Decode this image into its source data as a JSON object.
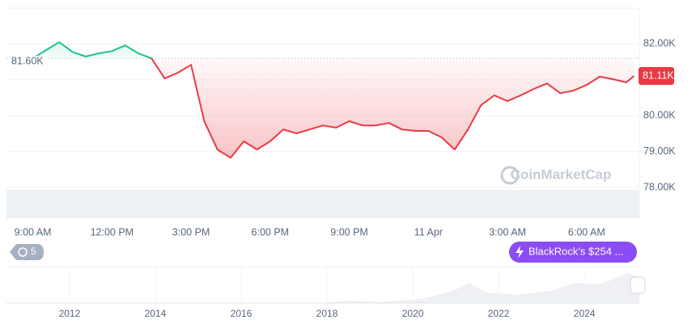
{
  "chart_data": {
    "type": "line",
    "x": [
      0.06,
      0.5,
      1,
      1.5,
      2,
      2.5,
      3,
      3.5,
      4,
      4.5,
      5,
      5.5,
      6,
      6.5,
      7,
      7.5,
      8,
      8.5,
      9,
      9.5,
      10,
      10.5,
      11,
      11.5,
      12,
      12.5,
      13,
      13.5,
      14,
      14.5,
      15,
      15.5,
      16,
      16.5,
      17,
      17.5,
      18,
      18.5,
      19,
      19.5,
      20,
      20.5,
      21,
      21.5,
      22,
      22.5,
      23,
      23.5,
      23.8
    ],
    "values": [
      81.65,
      81.6,
      81.6,
      81.83,
      82.05,
      81.78,
      81.65,
      81.74,
      81.8,
      81.96,
      81.74,
      81.6,
      81.04,
      81.2,
      81.42,
      79.85,
      79.06,
      78.83,
      79.29,
      79.06,
      79.29,
      79.62,
      79.51,
      79.62,
      79.73,
      79.67,
      79.85,
      79.73,
      79.73,
      79.8,
      79.62,
      79.58,
      79.58,
      79.4,
      79.06,
      79.62,
      80.3,
      80.57,
      80.41,
      80.57,
      80.75,
      80.9,
      80.63,
      80.7,
      80.86,
      81.09,
      81.02,
      80.93,
      81.11
    ],
    "up_color": "#16c784",
    "down_color": "#ea3943",
    "reference": {
      "value": 81.6,
      "label": "81.60K"
    },
    "current_price": {
      "value": 81.11,
      "label": "81.11K"
    },
    "xlim": [
      0,
      24
    ],
    "ylim": [
      77.15,
      83.0
    ],
    "xticks": [
      {
        "value": 1,
        "label": "9:00 AM"
      },
      {
        "value": 4,
        "label": "12:00 PM"
      },
      {
        "value": 7,
        "label": "3:00 PM"
      },
      {
        "value": 10,
        "label": "6:00 PM"
      },
      {
        "value": 13,
        "label": "9:00 PM"
      },
      {
        "value": 16,
        "label": "11 Apr"
      },
      {
        "value": 19,
        "label": "3:00 AM"
      },
      {
        "value": 22,
        "label": "6:00 AM"
      }
    ],
    "yticks": [
      {
        "value": 82,
        "label": "82.00K"
      },
      {
        "value": 81,
        "label": ""
      },
      {
        "value": 80,
        "label": "80.00K"
      },
      {
        "value": 79,
        "label": "79.00K"
      },
      {
        "value": 78,
        "label": "78.00K"
      }
    ],
    "grid": true,
    "watermark": "CoinMarketCap",
    "navigator": {
      "xlim": [
        2010.53,
        2025.28
      ],
      "xticks": [
        2012,
        2014,
        2016,
        2018,
        2020,
        2022,
        2024
      ]
    }
  },
  "controls": {
    "history_count": "5",
    "news_badge": "BlackRock's $254 ..."
  }
}
